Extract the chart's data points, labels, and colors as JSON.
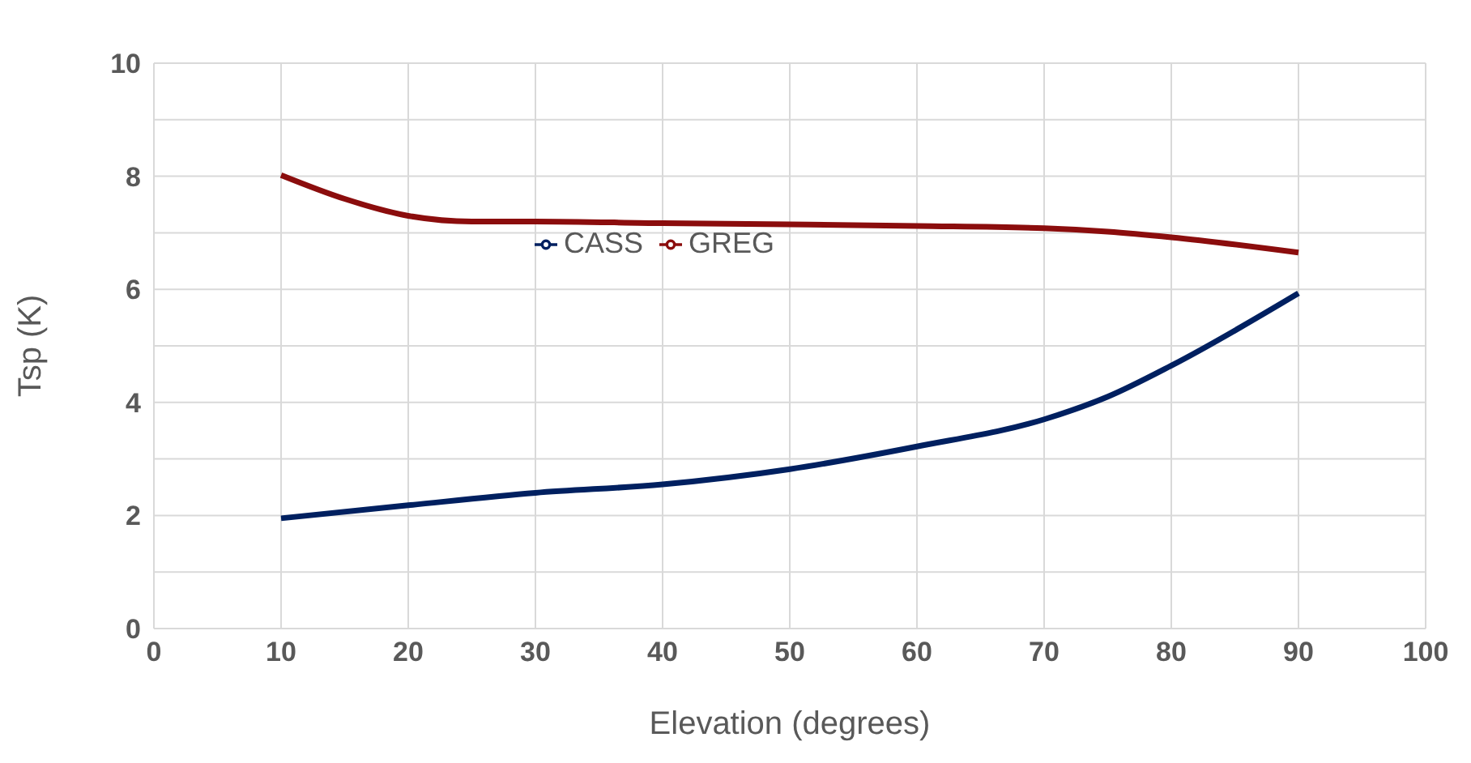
{
  "chart_data": {
    "type": "line",
    "xlabel": "Elevation (degrees)",
    "ylabel": "Tsp (K)",
    "xlim": [
      0,
      100
    ],
    "xticks": [
      0,
      10,
      20,
      30,
      40,
      50,
      60,
      70,
      80,
      90,
      100
    ],
    "ylim": [
      0,
      10
    ],
    "yticks": [
      0,
      {
        "value": 1,
        "label": null
      },
      2,
      {
        "value": 3,
        "label": null
      },
      4,
      {
        "value": 5,
        "label": null
      },
      6,
      {
        "value": 7,
        "label": null
      },
      8,
      {
        "value": 9,
        "label": null
      },
      10
    ],
    "grid": true,
    "legend": "top",
    "marker": "none",
    "line_style": "solid",
    "series": [
      {
        "name": "CASS",
        "color": "#002060",
        "x": [
          10,
          20,
          30,
          40,
          50,
          60,
          70,
          75,
          80,
          90
        ],
        "values": [
          1.95,
          2.18,
          2.4,
          2.55,
          2.82,
          3.22,
          3.7,
          4.1,
          4.65,
          5.93
        ]
      },
      {
        "name": "GREG",
        "color": "#8b0d0d",
        "x": [
          10,
          15,
          20,
          25,
          30,
          40,
          50,
          60,
          70,
          75,
          80,
          90
        ],
        "values": [
          8.02,
          7.6,
          7.3,
          7.2,
          7.2,
          7.17,
          7.15,
          7.12,
          7.08,
          7.02,
          6.92,
          6.65
        ]
      }
    ]
  }
}
